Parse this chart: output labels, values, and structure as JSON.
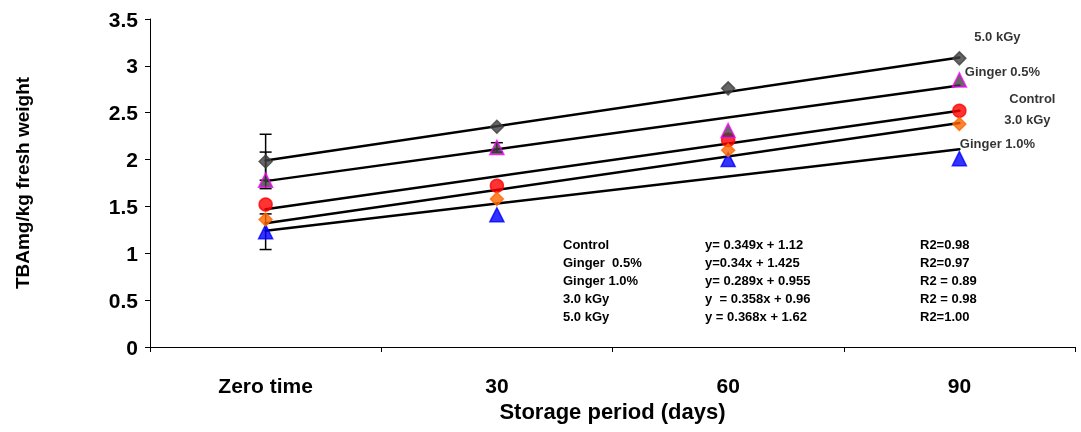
{
  "chart_data": {
    "type": "scatter",
    "xlabel": "Storage period (days)",
    "ylabel": "TBAmg/kg fresh weight",
    "categories": [
      "Zero time",
      "30",
      "60",
      "90"
    ],
    "ylim": [
      0,
      3.5
    ],
    "yticks": [
      0,
      0.5,
      1,
      1.5,
      2,
      2.5,
      3,
      3.5
    ],
    "grid": false,
    "legend": false,
    "series": [
      {
        "name": "Control",
        "color": "#ff0000",
        "marker": "circle",
        "values": [
          1.52,
          1.72,
          2.21,
          2.52
        ]
      },
      {
        "name": "Ginger 0.5%",
        "color": "#404040",
        "marker": "triangle",
        "values": [
          1.78,
          2.13,
          2.31,
          2.85
        ],
        "errors": [
          [
            1.78,
            2.08
          ],
          0.05,
          null,
          null
        ]
      },
      {
        "name": "Ginger 1.0%",
        "color": "#0000ff",
        "marker": "triangle",
        "values": [
          1.23,
          1.41,
          2.0,
          2.01
        ],
        "errors": [
          0.19,
          null,
          null,
          null
        ]
      },
      {
        "name": "3.0 kGy",
        "color": "#ff6600",
        "marker": "diamond",
        "values": [
          1.36,
          1.58,
          2.1,
          2.38
        ]
      },
      {
        "name": "5.0 kGy",
        "color": "#404040",
        "marker": "diamond",
        "values": [
          1.98,
          2.35,
          2.76,
          3.08
        ],
        "errors": [
          0.29,
          null,
          null,
          null
        ]
      },
      {
        "type": "line",
        "color": "#000000",
        "x": [
          "Zero time",
          "90"
        ],
        "values": [
          1.47,
          2.52
        ]
      },
      {
        "type": "line",
        "color": "#000000",
        "x": [
          "Zero time",
          "90"
        ],
        "values": [
          1.77,
          2.79
        ]
      },
      {
        "type": "line",
        "color": "#000000",
        "x": [
          "Zero time",
          "90"
        ],
        "values": [
          1.24,
          2.11
        ]
      },
      {
        "type": "line",
        "color": "#000000",
        "x": [
          "Zero time",
          "90"
        ],
        "values": [
          1.32,
          2.39
        ]
      },
      {
        "type": "line",
        "color": "#000000",
        "x": [
          "Zero time",
          "90"
        ],
        "values": [
          1.99,
          3.09
        ]
      }
    ],
    "annotations": [
      "Control",
      "y= 0.349x + 1.12",
      "R2=0.98",
      "Ginger  0.5%",
      "y=0.34x + 1.425",
      "R2=0.97",
      "Ginger 1.0%",
      "y= 0.289x + 0.955",
      "R2 = 0.89",
      "3.0 kGy",
      "y  = 0.358x + 0.96",
      "R2 = 0.98",
      "5.0 kGy",
      "y = 0.368x + 1.62",
      "R2=1.00"
    ]
  }
}
